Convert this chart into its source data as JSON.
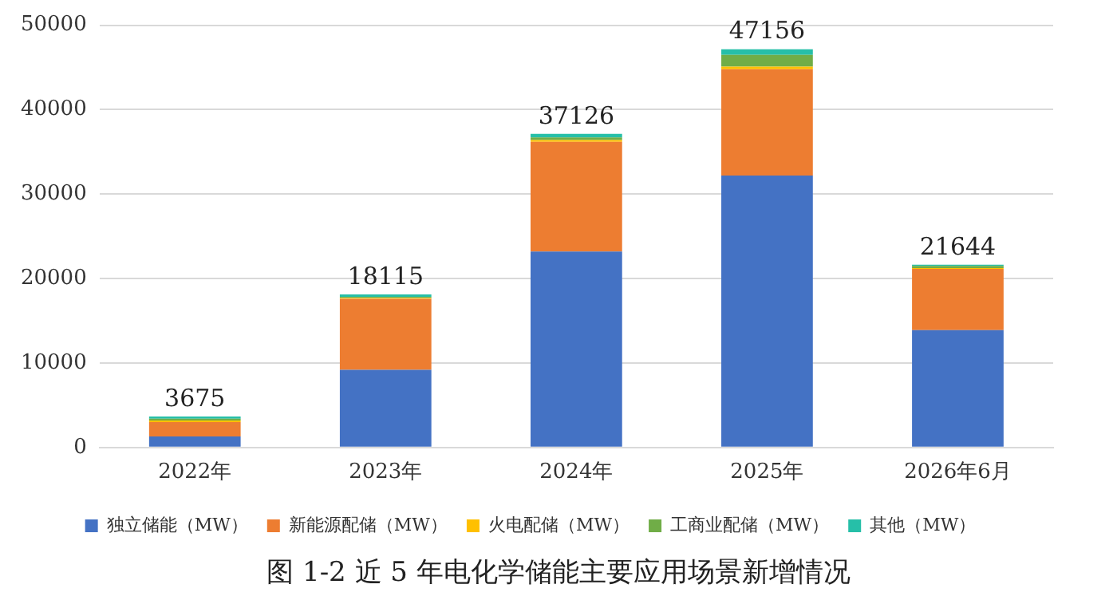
{
  "chart_data": {
    "type": "bar",
    "title": "图 1-2 近 5 年电化学储能主要应用场景新增情况",
    "stacked": true,
    "categories": [
      "2022年",
      "2023年",
      "2024年",
      "2025年",
      "2026年6月"
    ],
    "series": [
      {
        "name": "独立储能（MW）",
        "color": "#4472c4",
        "values": [
          1300,
          9200,
          23200,
          32200,
          13900
        ]
      },
      {
        "name": "新能源配储（MW）",
        "color": "#ed7d31",
        "values": [
          1700,
          8400,
          13000,
          12600,
          7250
        ]
      },
      {
        "name": "火电配储（MW）",
        "color": "#ffc000",
        "values": [
          200,
          100,
          200,
          300,
          100
        ]
      },
      {
        "name": "工商业配储（MW）",
        "color": "#70ad47",
        "values": [
          200,
          150,
          300,
          1400,
          250
        ]
      },
      {
        "name": "其他（MW）",
        "color": "#26bfa8",
        "values": [
          275,
          265,
          426,
          656,
          144
        ]
      }
    ],
    "totals": [
      "3675",
      "18115",
      "37126",
      "47156",
      "21644"
    ],
    "ylim": [
      0,
      50000
    ],
    "yticks": [
      0,
      10000,
      20000,
      30000,
      40000,
      50000
    ],
    "grid": "y",
    "legend": "bottom"
  }
}
